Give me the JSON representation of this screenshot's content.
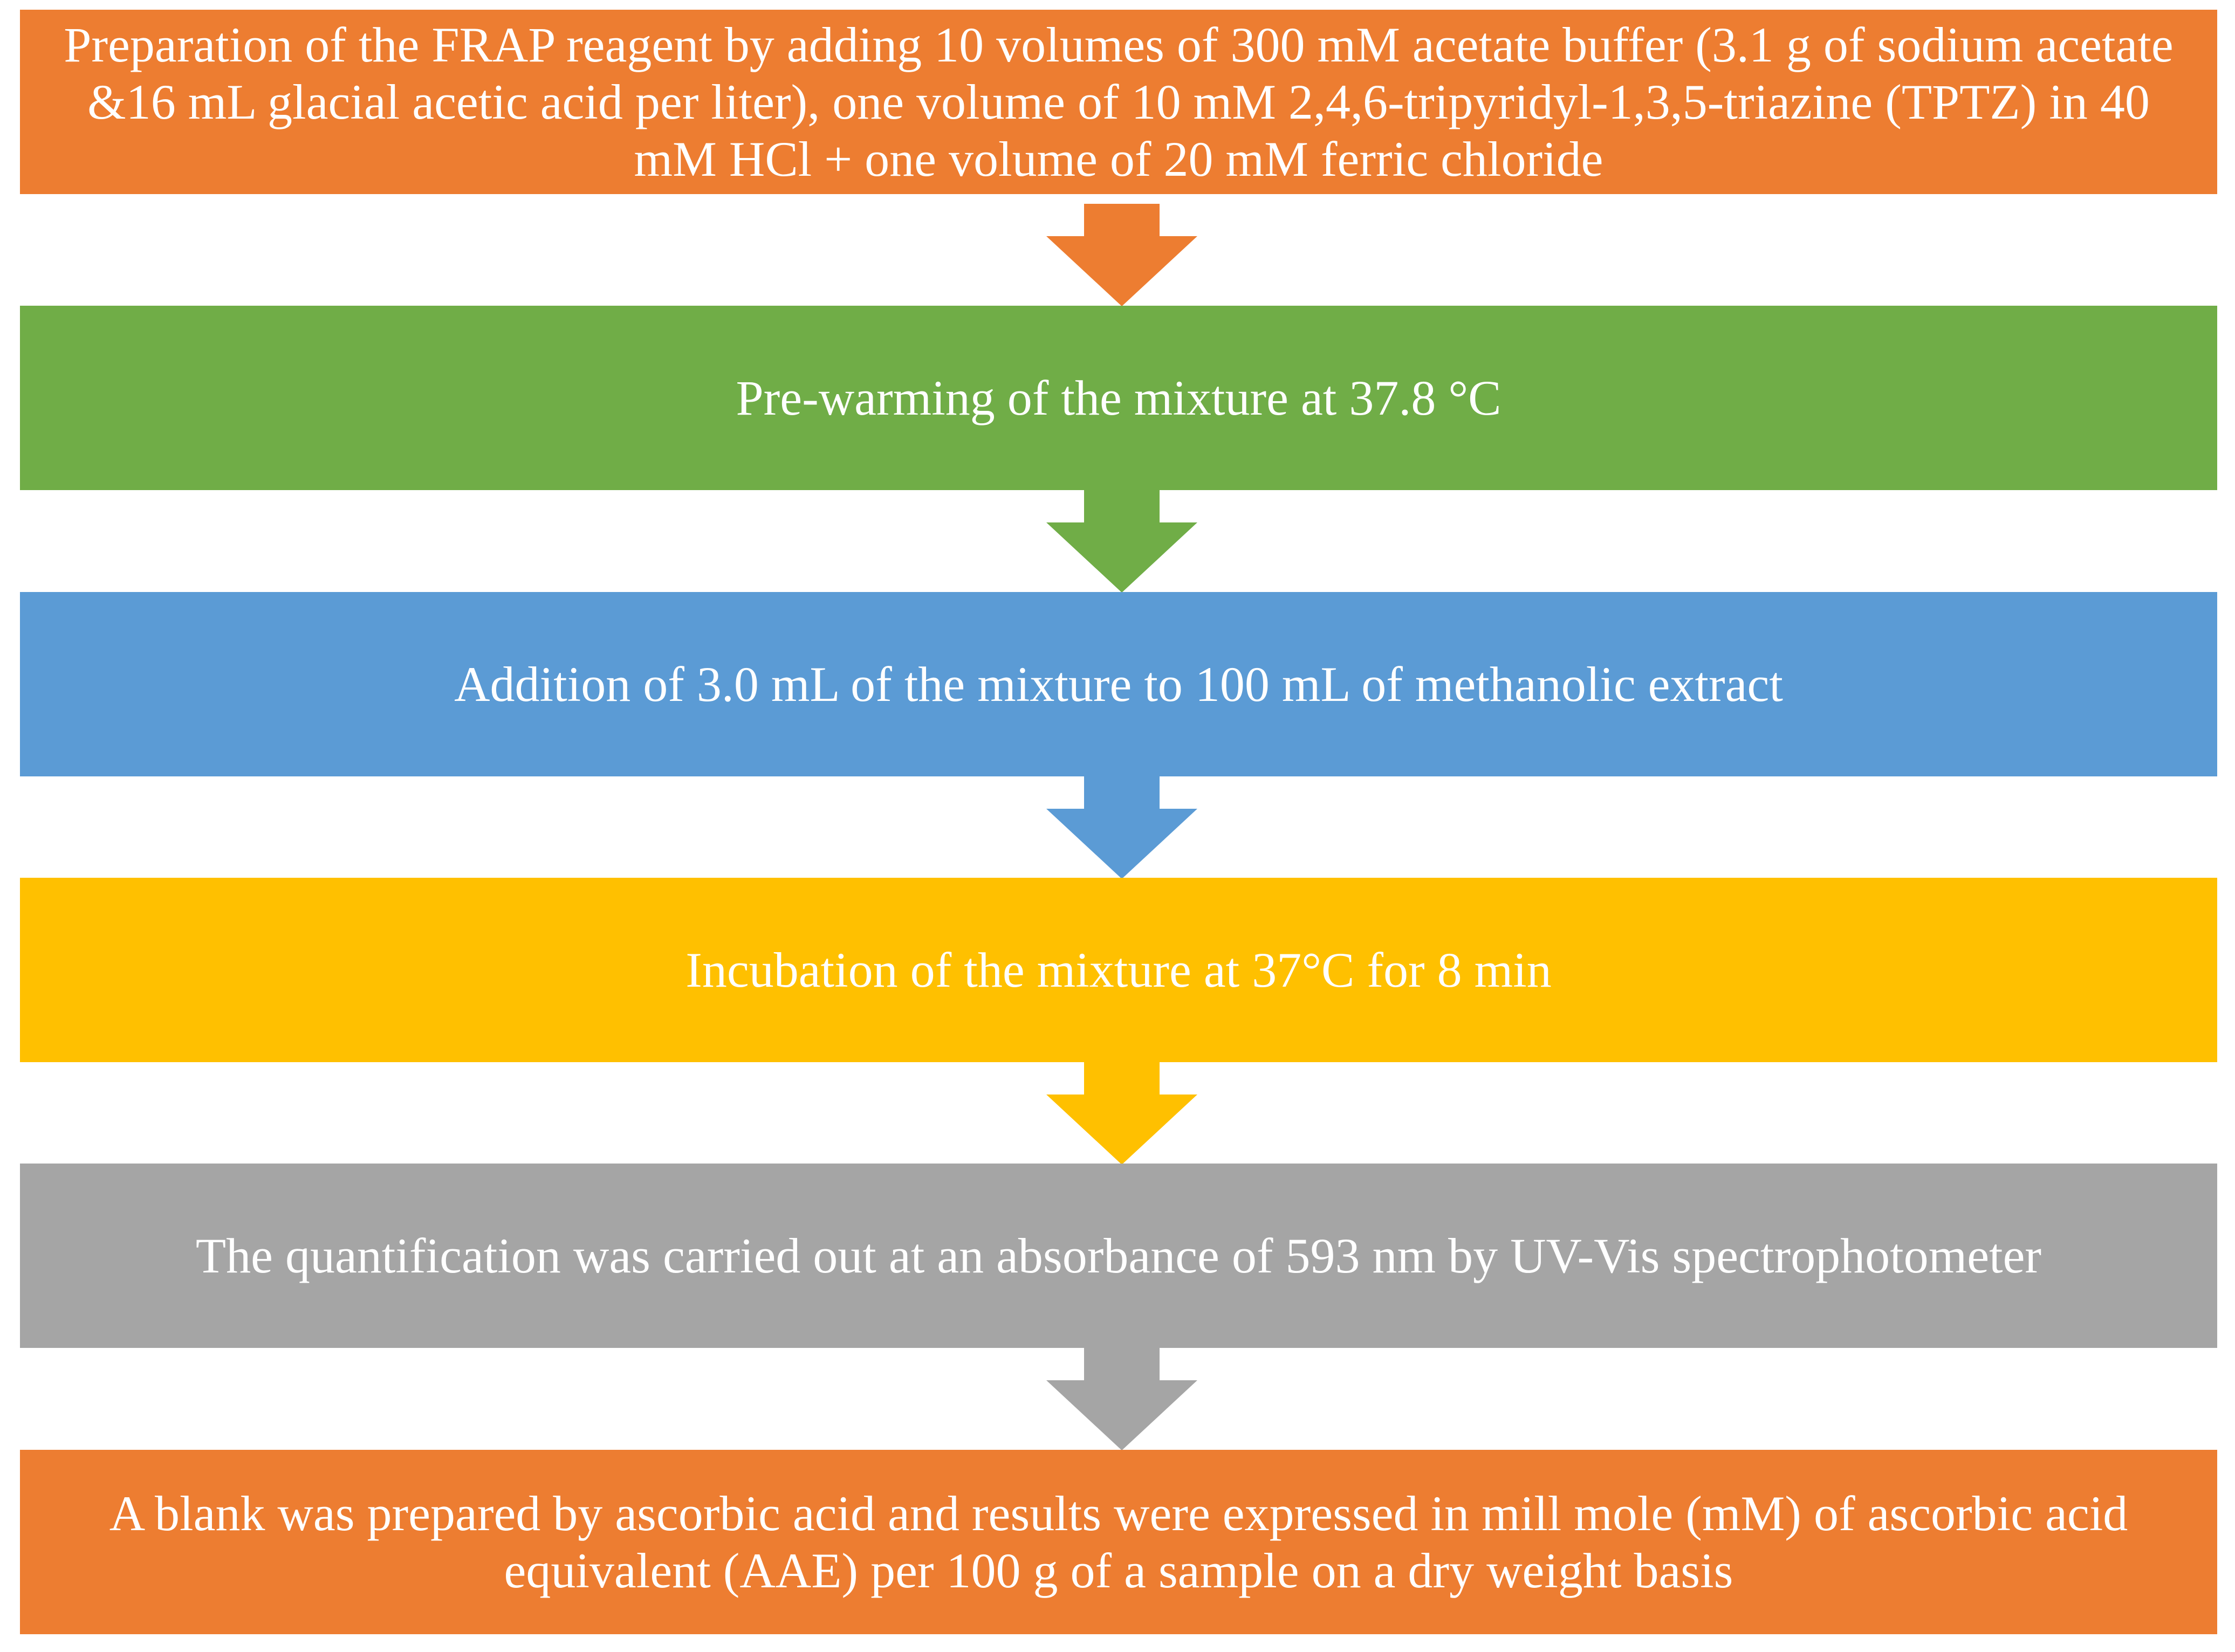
{
  "steps": [
    {
      "text": "Preparation of the FRAP reagent by adding 10 volumes of 300 mM acetate buffer (3.1 g of sodium acetate &16 mL glacial acetic acid per liter), one volume of 10 mM 2,4,6-tripyridyl-1,3,5-triazine (TPTZ) in 40 mM HCl + one volume of 20 mM ferric chloride",
      "color": "#ED7D31"
    },
    {
      "text": "Pre-warming of the mixture at 37.8 °C",
      "color": "#70AD47"
    },
    {
      "text": "Addition of 3.0 mL of the mixture to 100 mL of methanolic extract",
      "color": "#5B9BD5"
    },
    {
      "text": "Incubation of the mixture at 37°C for 8 min",
      "color": "#FFC000"
    },
    {
      "text": "The quantification was carried out at an absorbance of 593 nm by UV-Vis spectrophotometer",
      "color": "#A5A5A5"
    },
    {
      "text": "A blank was prepared by ascorbic acid and results were expressed in mill mole (mM) of ascorbic acid equivalent (AAE) per 100 g of a sample on a dry weight basis",
      "color": "#ED7D31"
    }
  ]
}
